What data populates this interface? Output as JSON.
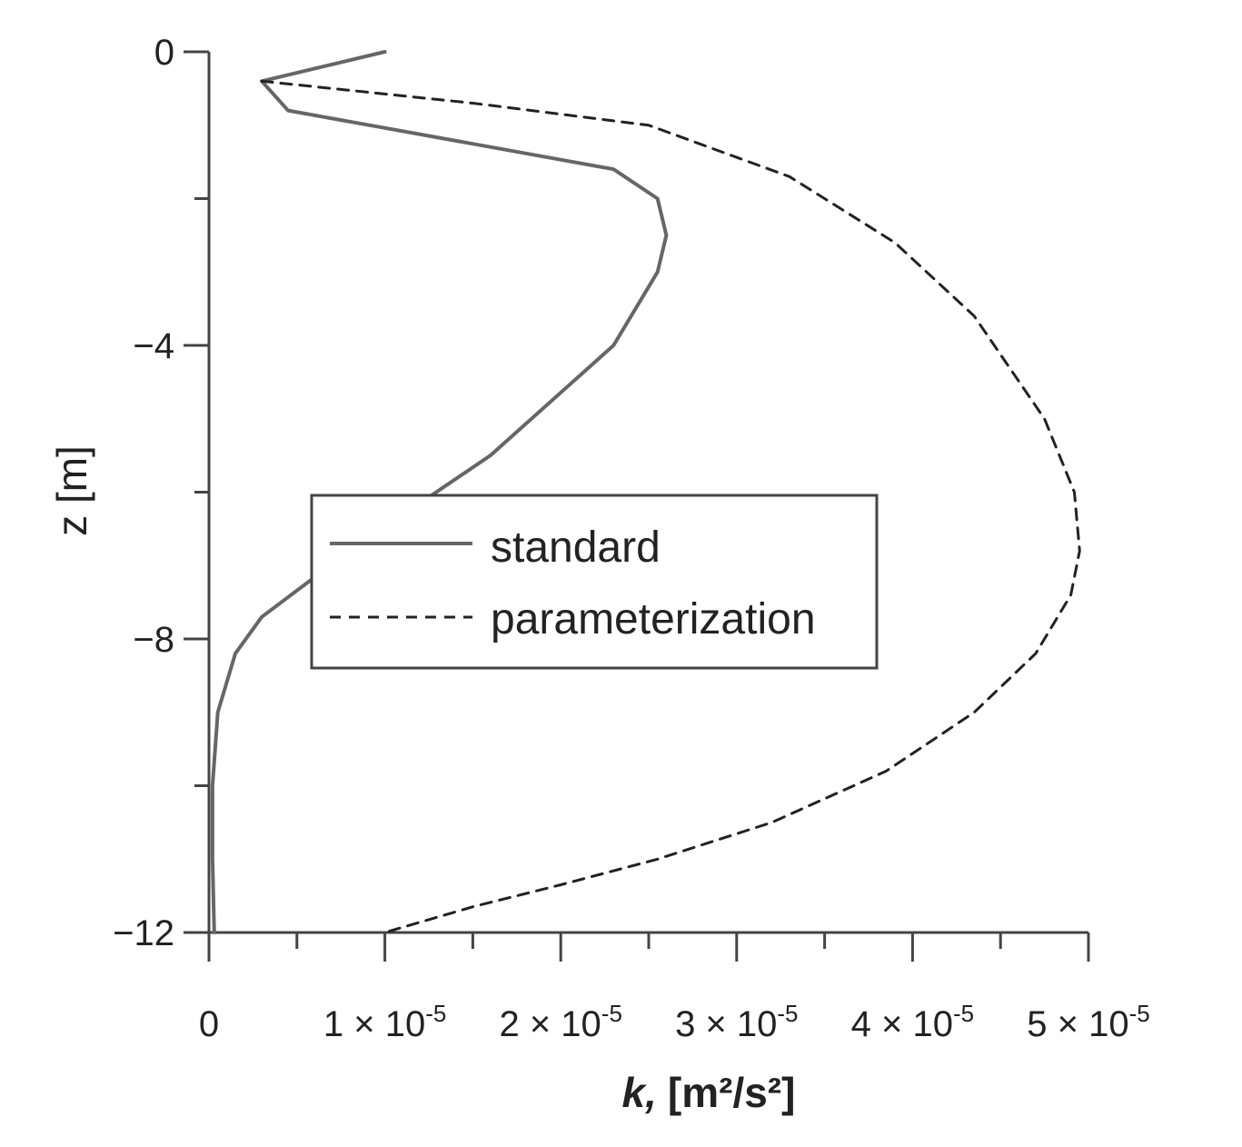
{
  "chart_data": {
    "type": "line",
    "xlabel_symbol": "k,",
    "xlabel_unit": "[m²/s²]",
    "ylabel": "z [m]",
    "xlim": [
      0,
      5e-05
    ],
    "ylim": [
      -12,
      0
    ],
    "x_ticks": [
      {
        "value": 0,
        "mantissa": "0",
        "exp": ""
      },
      {
        "value": 1e-05,
        "mantissa": "1 × 10",
        "exp": "-5"
      },
      {
        "value": 2e-05,
        "mantissa": "2 × 10",
        "exp": "-5"
      },
      {
        "value": 3e-05,
        "mantissa": "3 × 10",
        "exp": "-5"
      },
      {
        "value": 4e-05,
        "mantissa": "4 × 10",
        "exp": "-5"
      },
      {
        "value": 5e-05,
        "mantissa": "5 × 10",
        "exp": "-5"
      }
    ],
    "x_minor_ticks": [
      5e-06,
      1.5e-05,
      2.5e-05,
      3.5e-05,
      4.5e-05
    ],
    "y_ticks": [
      {
        "value": 0,
        "label": "0"
      },
      {
        "value": -4,
        "label": "−4"
      },
      {
        "value": -8,
        "label": "−8"
      },
      {
        "value": -12,
        "label": "−12"
      }
    ],
    "y_minor_ticks": [
      -2,
      -6,
      -10
    ],
    "grid": false,
    "legend_position": "center",
    "series": [
      {
        "name": "standard",
        "style": "solid",
        "color": "#666666",
        "x": [
          1e-05,
          3e-06,
          4.5e-06,
          2.3e-05,
          2.55e-05,
          2.6e-05,
          2.55e-05,
          2.3e-05,
          1.6e-05,
          8e-06,
          3e-06,
          1.5e-06,
          5e-07,
          2e-07,
          2e-07,
          3e-07
        ],
        "y": [
          0,
          -0.4,
          -0.8,
          -1.6,
          -2.0,
          -2.5,
          -3.0,
          -4.0,
          -5.5,
          -6.8,
          -7.7,
          -8.2,
          -9.0,
          -10.0,
          -11.0,
          -12.0
        ]
      },
      {
        "name": "parameterization",
        "style": "dashed",
        "color": "#222222",
        "x": [
          3e-06,
          1.5e-05,
          2.5e-05,
          3.3e-05,
          3.9e-05,
          4.35e-05,
          4.75e-05,
          4.92e-05,
          4.95e-05,
          4.9e-05,
          4.7e-05,
          4.35e-05,
          3.85e-05,
          3.2e-05,
          2.55e-05,
          2e-05,
          1.5e-05,
          1e-05
        ],
        "y": [
          -0.4,
          -0.7,
          -1.0,
          -1.7,
          -2.6,
          -3.6,
          -5.0,
          -6.0,
          -6.8,
          -7.4,
          -8.2,
          -9.0,
          -9.8,
          -10.5,
          -11.0,
          -11.35,
          -11.65,
          -12.0
        ]
      }
    ]
  }
}
